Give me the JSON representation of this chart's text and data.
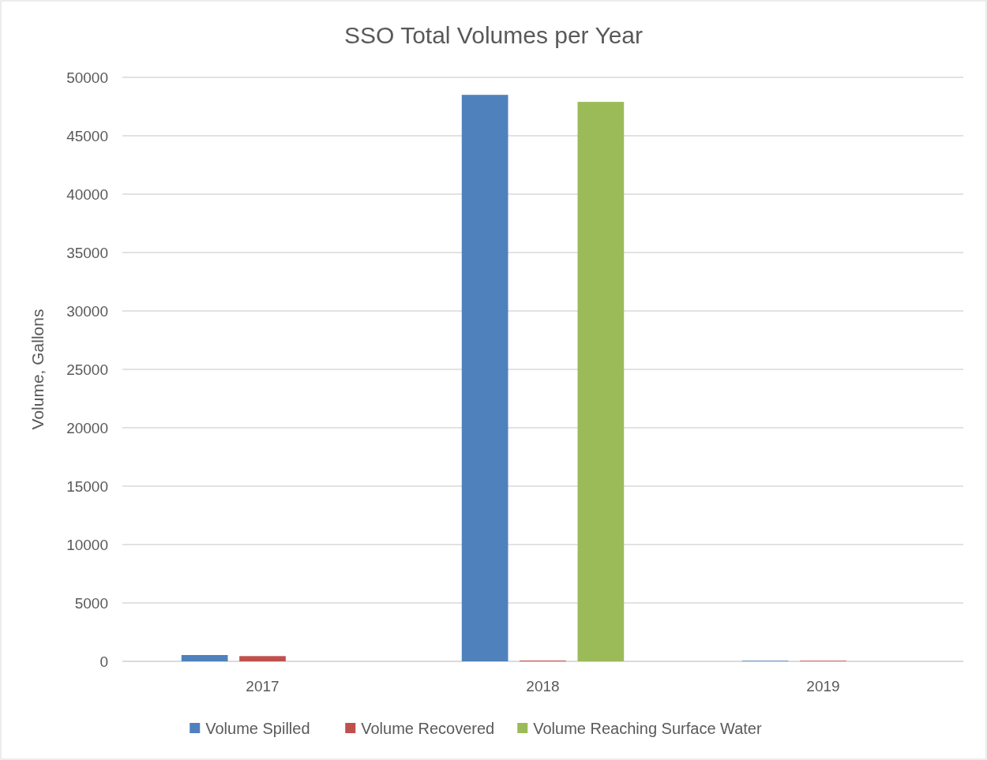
{
  "chart_data": {
    "type": "bar",
    "title": "SSO Total Volumes per Year",
    "ylabel": "Volume, Gallons",
    "categories": [
      "2017",
      "2018",
      "2019"
    ],
    "series": [
      {
        "name": "Volume Spilled",
        "color": "#4f81bd",
        "values": [
          540,
          48500,
          50
        ]
      },
      {
        "name": "Volume Recovered",
        "color": "#c0504d",
        "values": [
          450,
          70,
          50
        ]
      },
      {
        "name": "Volume Reaching Surface Water",
        "color": "#9bbb59",
        "values": [
          0,
          47900,
          0
        ]
      }
    ],
    "ylim": [
      0,
      50000
    ],
    "yticks": [
      0,
      5000,
      10000,
      15000,
      20000,
      25000,
      30000,
      35000,
      40000,
      45000,
      50000
    ],
    "grid": "y",
    "legend": "bottom"
  }
}
